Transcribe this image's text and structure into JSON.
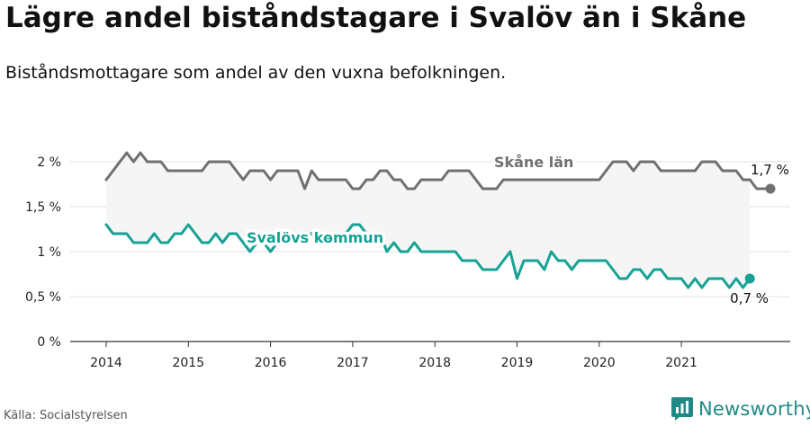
{
  "title": "Lägre andel biståndstagare i Svalöv än i Skåne",
  "subtitle": "Biståndsmottagare som andel av den vuxna befolkningen.",
  "source": "Källa: Socialstyrelsen",
  "brand": {
    "name": "Newsworthy",
    "icon": "newsworthy-logo-icon",
    "color": "#1f8a85"
  },
  "chart_data": {
    "type": "line",
    "x_ticks": [
      "2014",
      "2015",
      "2016",
      "2017",
      "2018",
      "2019",
      "2020",
      "2021"
    ],
    "y_ticks": [
      "0 %",
      "0,5 %",
      "1 %",
      "1,5 %",
      "2 %"
    ],
    "ylim": [
      0,
      2.2
    ],
    "x_start": "2014-01",
    "grid": "horizontal",
    "band_fill": "#f5f5f5",
    "series": [
      {
        "name": "Skåne län",
        "color": "#707070",
        "end_label": "1,7 %",
        "values": [
          1.8,
          1.9,
          2.0,
          2.1,
          2.0,
          2.1,
          2.0,
          2.0,
          2.0,
          1.9,
          1.9,
          1.9,
          1.9,
          1.9,
          1.9,
          2.0,
          2.0,
          2.0,
          2.0,
          1.9,
          1.8,
          1.9,
          1.9,
          1.9,
          1.8,
          1.9,
          1.9,
          1.9,
          1.9,
          1.7,
          1.9,
          1.8,
          1.8,
          1.8,
          1.8,
          1.8,
          1.7,
          1.7,
          1.8,
          1.8,
          1.9,
          1.9,
          1.8,
          1.8,
          1.7,
          1.7,
          1.8,
          1.8,
          1.8,
          1.8,
          1.9,
          1.9,
          1.9,
          1.9,
          1.8,
          1.7,
          1.7,
          1.7,
          1.8,
          1.8,
          1.8,
          1.8,
          1.8,
          1.8,
          1.8,
          1.8,
          1.8,
          1.8,
          1.8,
          1.8,
          1.8,
          1.8,
          1.8,
          1.9,
          2.0,
          2.0,
          2.0,
          1.9,
          2.0,
          2.0,
          2.0,
          1.9,
          1.9,
          1.9,
          1.9,
          1.9,
          1.9,
          2.0,
          2.0,
          2.0,
          1.9,
          1.9,
          1.9,
          1.8,
          1.8,
          1.7,
          1.7,
          1.7
        ]
      },
      {
        "name": "Svalövs kommun",
        "color": "#16a294",
        "end_label": "0,7 %",
        "values": [
          1.3,
          1.2,
          1.2,
          1.2,
          1.1,
          1.1,
          1.1,
          1.2,
          1.1,
          1.1,
          1.2,
          1.2,
          1.3,
          1.2,
          1.1,
          1.1,
          1.2,
          1.1,
          1.2,
          1.2,
          1.1,
          1.0,
          1.1,
          1.1,
          1.0,
          1.1,
          1.1,
          1.1,
          1.2,
          1.2,
          1.2,
          1.1,
          1.1,
          1.2,
          1.2,
          1.2,
          1.3,
          1.3,
          1.2,
          1.2,
          1.2,
          1.0,
          1.1,
          1.0,
          1.0,
          1.1,
          1.0,
          1.0,
          1.0,
          1.0,
          1.0,
          1.0,
          0.9,
          0.9,
          0.9,
          0.8,
          0.8,
          0.8,
          0.9,
          1.0,
          0.7,
          0.9,
          0.9,
          0.9,
          0.8,
          1.0,
          0.9,
          0.9,
          0.8,
          0.9,
          0.9,
          0.9,
          0.9,
          0.9,
          0.8,
          0.7,
          0.7,
          0.8,
          0.8,
          0.7,
          0.8,
          0.8,
          0.7,
          0.7,
          0.7,
          0.6,
          0.7,
          0.6,
          0.7,
          0.7,
          0.7,
          0.6,
          0.7,
          0.6,
          0.7
        ]
      }
    ]
  }
}
